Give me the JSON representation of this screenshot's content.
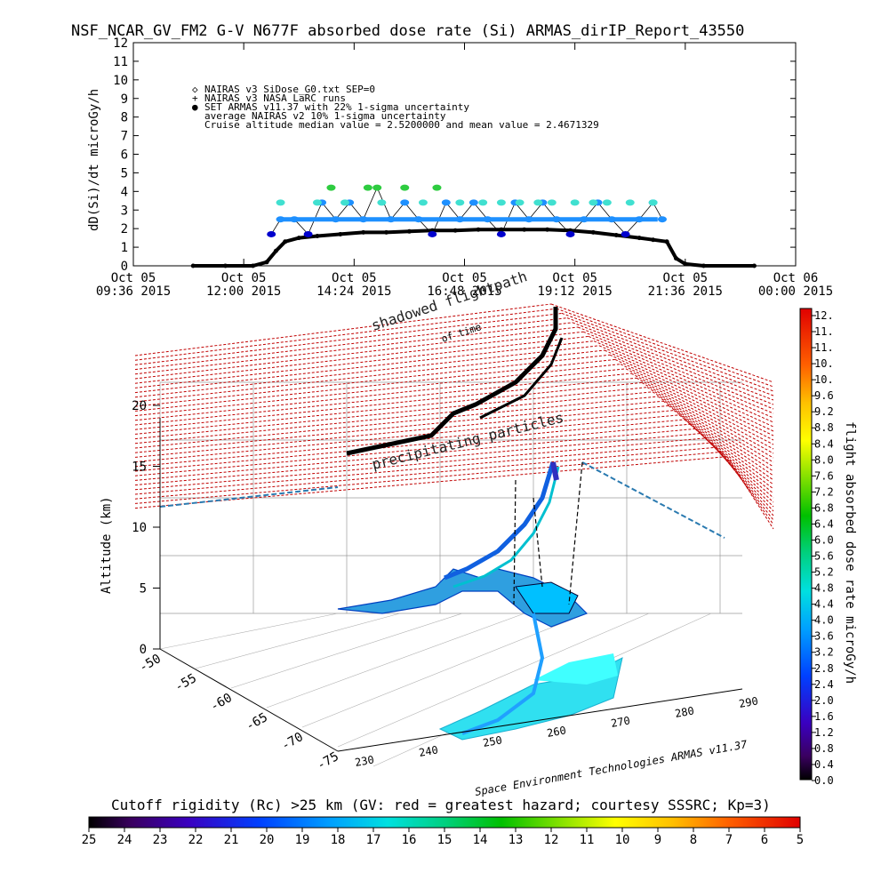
{
  "title": "NSF_NCAR_GV_FM2 G-V     N677F  absorbed dose rate (Si) ARMAS_dirIP_Report_43550",
  "colors": {
    "nairas": "#000000",
    "armas_blue": "#1e90ff",
    "armas_cyan": "#40e0d0",
    "armas_dark": "#0000cd",
    "armas_green": "#2ecc40",
    "grid_red": "#c00000"
  },
  "chart_data": [
    {
      "type": "scatter",
      "title": "NSF_NCAR_GV_FM2 G-V     N677F  absorbed dose rate (Si) ARMAS_dirIP_Report_43550",
      "ylabel": "dD(Si)/dt microGy/h",
      "ylim": [
        0,
        12
      ],
      "yticks": [
        "0",
        "1",
        "2",
        "3",
        "4",
        "5",
        "6",
        "7",
        "8",
        "9",
        "10",
        "11",
        "12"
      ],
      "xlim": [
        0,
        14.4
      ],
      "xticks": [
        {
          "line1": "Oct 05",
          "line2": "09:36 2015"
        },
        {
          "line1": "Oct 05",
          "line2": "12:00 2015"
        },
        {
          "line1": "Oct 05",
          "line2": "14:24 2015"
        },
        {
          "line1": "Oct 05",
          "line2": "16:48 2015"
        },
        {
          "line1": "Oct 05",
          "line2": "19:12 2015"
        },
        {
          "line1": "Oct 05",
          "line2": "21:36 2015"
        },
        {
          "line1": "Oct 06",
          "line2": "00:00 2015"
        }
      ],
      "legend": [
        {
          "symbol": "◇",
          "text": "NAIRAS v3 SiDose_G0.txt SEP=0"
        },
        {
          "symbol": "+",
          "text": "NAIRAS v3 NASA LaRC runs"
        },
        {
          "symbol": "●",
          "text": "SET ARMAS v11.37 with 22% 1-sigma uncertainty"
        },
        {
          "symbol": "",
          "text": "average NAIRAS v2 10% 1-sigma uncertainty"
        },
        {
          "symbol": "",
          "text": "Cruise altitude median value =  2.5200000 and mean value =  2.4671329"
        }
      ],
      "series": [
        {
          "name": "NAIRAS v3 SiDose_G0.txt SEP=0",
          "x": [
            1.3,
            2.0,
            2.6,
            2.9,
            3.1,
            3.3,
            3.6,
            4.0,
            4.5,
            5.0,
            5.5,
            6.0,
            6.5,
            7.0,
            7.5,
            8.0,
            8.5,
            9.0,
            9.5,
            10.0,
            10.5,
            11.0,
            11.3,
            11.6,
            11.8,
            12.0,
            12.4,
            13.5
          ],
          "y": [
            0,
            0,
            0,
            0.2,
            0.8,
            1.3,
            1.5,
            1.6,
            1.7,
            1.8,
            1.8,
            1.85,
            1.9,
            1.9,
            1.95,
            1.95,
            1.95,
            1.95,
            1.9,
            1.8,
            1.65,
            1.5,
            1.4,
            1.3,
            0.4,
            0.1,
            0,
            0
          ]
        },
        {
          "name": "SET ARMAS v11.37 with 22% 1-sigma uncertainty",
          "x": [
            3.0,
            3.2,
            3.5,
            3.8,
            4.1,
            4.4,
            4.7,
            5.0,
            5.3,
            5.6,
            5.9,
            6.2,
            6.5,
            6.8,
            7.1,
            7.4,
            7.7,
            8.0,
            8.3,
            8.6,
            8.9,
            9.2,
            9.5,
            9.8,
            10.1,
            10.4,
            10.7,
            11.0,
            11.3,
            11.5
          ],
          "y": [
            1.7,
            2.5,
            2.5,
            1.7,
            3.4,
            2.5,
            3.4,
            2.5,
            4.2,
            2.5,
            3.4,
            2.5,
            1.7,
            3.4,
            2.5,
            3.4,
            2.5,
            1.7,
            3.4,
            2.5,
            3.4,
            2.5,
            1.7,
            2.5,
            3.4,
            2.5,
            1.7,
            2.5,
            3.4,
            2.5
          ]
        }
      ],
      "series_cyan": {
        "x": [
          3.2,
          4.0,
          4.3,
          4.6,
          5.1,
          5.4,
          5.9,
          6.3,
          6.6,
          7.1,
          7.6,
          8.0,
          8.4,
          8.8,
          9.1,
          9.6,
          10.0,
          10.3,
          10.8,
          11.3
        ],
        "y": [
          3.4,
          3.4,
          4.2,
          3.4,
          4.2,
          3.4,
          4.2,
          3.4,
          4.2,
          3.4,
          3.4,
          3.4,
          3.4,
          3.4,
          3.4,
          3.4,
          3.4,
          3.4,
          3.4,
          3.4
        ]
      }
    },
    {
      "type": "scatter",
      "title": "",
      "zlabel": "Altitude (km)",
      "zticks": [
        "0",
        "5",
        "10",
        "15",
        "20"
      ],
      "lat_ticks": [
        "-50",
        "-55",
        "-60",
        "-65",
        "-70",
        "-75"
      ],
      "lon_ticks": [
        "230",
        "240",
        "250",
        "260",
        "270",
        "280",
        "290"
      ],
      "labels": {
        "shadowed": "shadowed flightpath",
        "of_time": "of time",
        "precip": "precipitating particles",
        "credit": "Space Environment Technologies ARMAS v11.37"
      }
    }
  ],
  "colorbar_right": {
    "label": "flight absorbed dose rate microGy/h",
    "ticks": [
      "12.",
      "11.",
      "11.",
      "10.",
      "10.",
      "9.6",
      "9.2",
      "8.8",
      "8.4",
      "8.0",
      "7.6",
      "7.2",
      "6.8",
      "6.4",
      "6.0",
      "5.6",
      "5.2",
      "4.8",
      "4.4",
      "4.0",
      "3.6",
      "3.2",
      "2.8",
      "2.4",
      "2.0",
      "1.6",
      "1.2",
      "0.8",
      "0.4",
      "0.0"
    ]
  },
  "colorbar_bottom": {
    "title": "Cutoff rigidity (Rc) >25 km (GV: red = greatest hazard; courtesy SSSRC; Kp=3)",
    "ticks": [
      "25",
      "24",
      "23",
      "22",
      "21",
      "20",
      "19",
      "18",
      "17",
      "16",
      "15",
      "14",
      "13",
      "12",
      "11",
      "10",
      "9",
      "8",
      "7",
      "6",
      "5"
    ]
  }
}
